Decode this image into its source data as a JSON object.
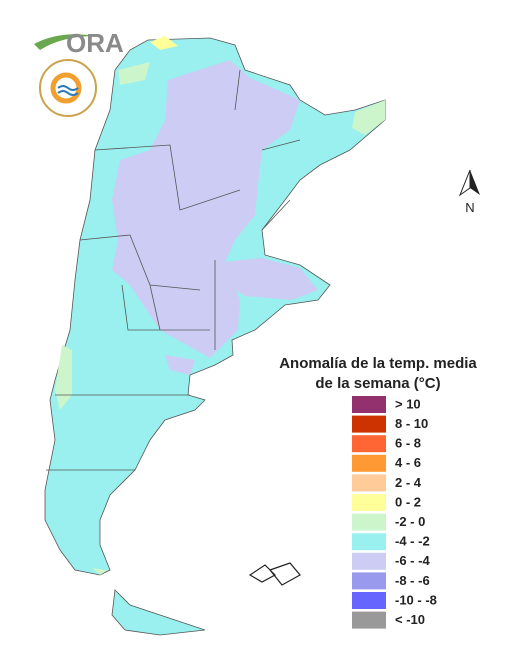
{
  "logo": {
    "text": "ORA"
  },
  "north": {
    "label": "N"
  },
  "legend": {
    "title_lines": [
      "Anomalía de la temp. media",
      "de la semana (°C)"
    ],
    "items": [
      {
        "label": "> 10",
        "color": "#93306e"
      },
      {
        "label": "8 - 10",
        "color": "#cc3300"
      },
      {
        "label": "6 - 8",
        "color": "#ff6633"
      },
      {
        "label": "4 - 6",
        "color": "#ff9933"
      },
      {
        "label": "2 - 4",
        "color": "#ffcc99"
      },
      {
        "label": "0 - 2",
        "color": "#ffff99"
      },
      {
        "label": "-2 - 0",
        "color": "#ccf5cc"
      },
      {
        "label": "-4 - -2",
        "color": "#99f0ee"
      },
      {
        "label": "-6 - -4",
        "color": "#ccccf5"
      },
      {
        "label": "-8 - -6",
        "color": "#9999ee"
      },
      {
        "label": "-10 - -8",
        "color": "#6666ff"
      },
      {
        "label": "< -10",
        "color": "#999999"
      }
    ]
  }
}
